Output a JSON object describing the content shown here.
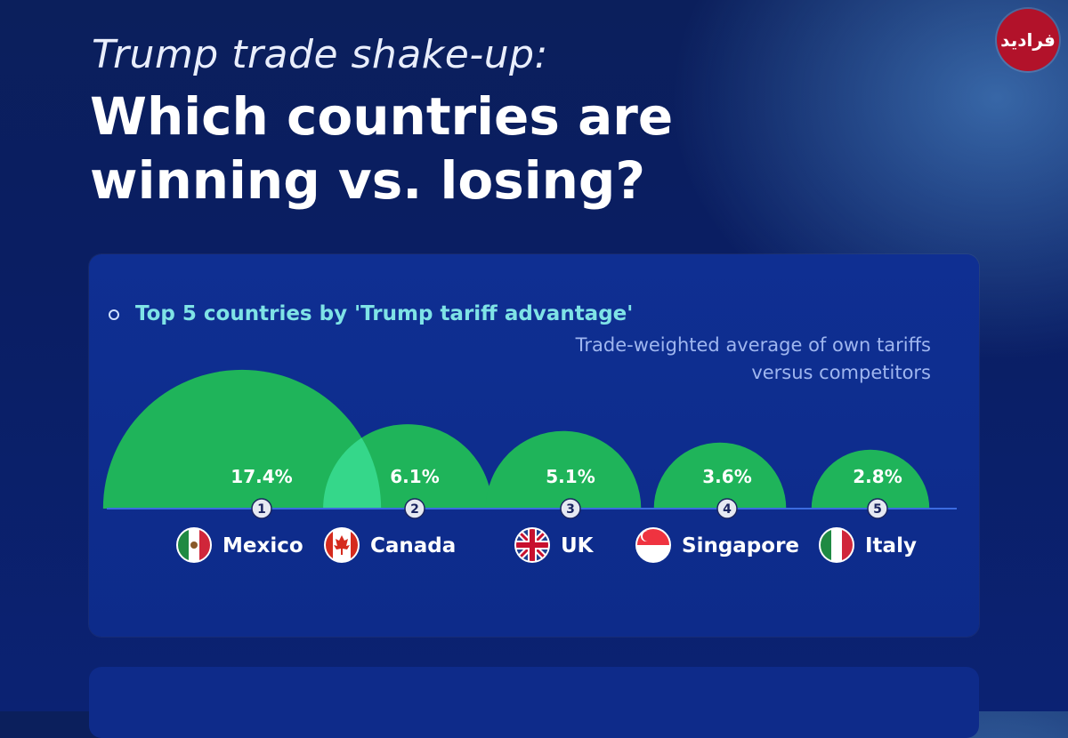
{
  "header": {
    "subtitle": "Trump trade shake-up:",
    "title": "Which countries are winning vs. losing?"
  },
  "logo": {
    "text": "فرادید",
    "color": "#b2122a"
  },
  "card": {
    "title": "Top 5 countries by 'Trump tariff advantage'",
    "note": "Trade-weighted average of own tariffs versus competitors"
  },
  "chart_data": {
    "type": "bubble-semicircle",
    "unit": "%",
    "title": "Top 5 countries by 'Trump tariff advantage'",
    "subtitle": "Trade-weighted average of own tariffs versus competitors",
    "categories": [
      "Mexico",
      "Canada",
      "UK",
      "Singapore",
      "Italy"
    ],
    "ranks": [
      1,
      2,
      3,
      4,
      5
    ],
    "values": [
      17.4,
      6.1,
      5.1,
      3.6,
      2.8
    ],
    "labels": [
      "17.4%",
      "6.1%",
      "5.1%",
      "3.6%",
      "2.8%"
    ],
    "flags": [
      "mexico-flag-icon",
      "canada-flag-icon",
      "uk-flag-icon",
      "singapore-flag-icon",
      "italy-flag-icon"
    ],
    "colors": {
      "bubble": "#1fb45a",
      "bubble_overlap": "#35d78a",
      "baseline": "#3b6be0",
      "label": "#ffffff"
    }
  }
}
